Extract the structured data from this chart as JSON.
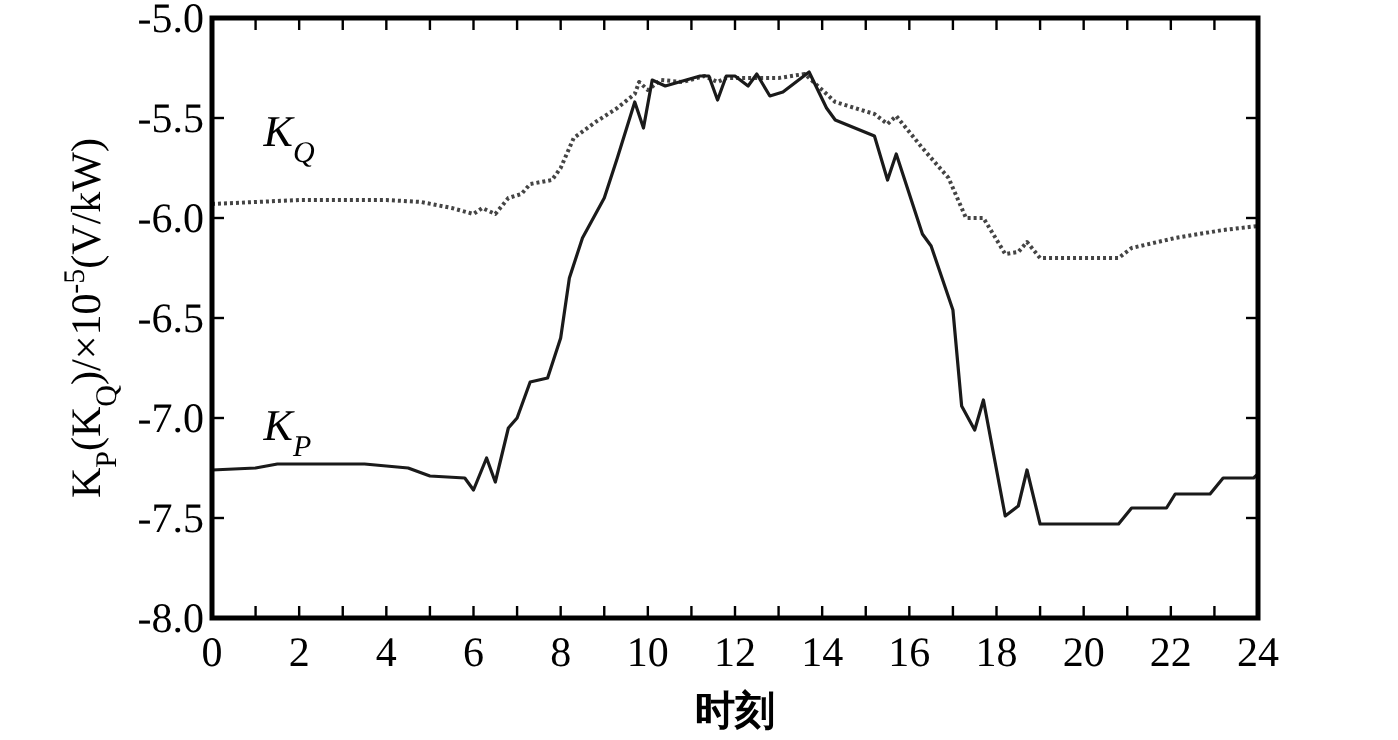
{
  "chart_data": {
    "type": "line",
    "xlabel": "时刻",
    "ylabel": "K$_{P}$(K$_{Q}$)/×10$^{-5}$(V/kW)",
    "xlim": [
      0,
      24
    ],
    "ylim": [
      -8,
      -5
    ],
    "xticks": [
      0,
      {
        "value": 1,
        "label": null
      },
      2,
      {
        "value": 3,
        "label": null
      },
      4,
      {
        "value": 5,
        "label": null
      },
      6,
      {
        "value": 7,
        "label": null
      },
      8,
      {
        "value": 9,
        "label": null
      },
      10,
      {
        "value": 11,
        "label": null
      },
      12,
      {
        "value": 13,
        "label": null
      },
      14,
      {
        "value": 15,
        "label": null
      },
      16,
      {
        "value": 17,
        "label": null
      },
      18,
      {
        "value": 19,
        "label": null
      },
      20,
      {
        "value": 21,
        "label": null
      },
      22,
      {
        "value": 23,
        "label": null
      },
      24
    ],
    "yticks": [
      {
        "value": -8,
        "label": "-8.0"
      },
      {
        "value": -7.5,
        "label": "-7.5"
      },
      {
        "value": -7,
        "label": "-7.0"
      },
      {
        "value": -6.5,
        "label": "-6.5"
      },
      {
        "value": -6,
        "label": "-6.0"
      },
      {
        "value": -5.5,
        "label": "-5.5"
      },
      {
        "value": -5,
        "label": "-5.0"
      }
    ],
    "grid": false,
    "marker": "none",
    "series": [
      {
        "name": "K$_{Q}$",
        "color": "#444444",
        "line_style": "dotted",
        "x": [
          0,
          1,
          2,
          4,
          4.8,
          5.5,
          6.0,
          6.2,
          6.5,
          6.8,
          7.1,
          7.3,
          7.8,
          8.0,
          8.3,
          8.8,
          9.3,
          9.7,
          9.8,
          10.0,
          10.3,
          10.8,
          11.3,
          11.6,
          11.8,
          12.5,
          13.0,
          13.6,
          14.3,
          15.2,
          15.5,
          15.7,
          16.3,
          16.9,
          17.3,
          17.7,
          18.2,
          18.5,
          18.7,
          19.0,
          20.8,
          21.1,
          22.1,
          23.2,
          24
        ],
        "values": [
          -5.93,
          -5.92,
          -5.91,
          -5.91,
          -5.92,
          -5.95,
          -5.98,
          -5.95,
          -5.98,
          -5.9,
          -5.88,
          -5.83,
          -5.81,
          -5.75,
          -5.6,
          -5.52,
          -5.45,
          -5.38,
          -5.32,
          -5.36,
          -5.31,
          -5.32,
          -5.29,
          -5.32,
          -5.3,
          -5.3,
          -5.3,
          -5.28,
          -5.42,
          -5.48,
          -5.53,
          -5.49,
          -5.65,
          -5.8,
          -6.0,
          -6.0,
          -6.18,
          -6.17,
          -6.12,
          -6.2,
          -6.2,
          -6.15,
          -6.1,
          -6.06,
          -6.04
        ]
      },
      {
        "name": "K$_{P}$",
        "color": "#1a1a1a",
        "line_style": "solid",
        "x": [
          0,
          1,
          1.5,
          3.5,
          4.5,
          5,
          5.8,
          6.0,
          6.3,
          6.5,
          6.8,
          7.0,
          7.3,
          7.7,
          8.0,
          8.2,
          8.5,
          9.0,
          9.3,
          9.7,
          9.9,
          10.1,
          10.4,
          11.2,
          11.4,
          11.6,
          11.8,
          12.0,
          12.3,
          12.5,
          12.8,
          13.1,
          13.7,
          14.1,
          14.3,
          15.2,
          15.5,
          15.7,
          16.3,
          16.5,
          17.0,
          17.2,
          17.5,
          17.7,
          18.2,
          18.5,
          18.7,
          19.0,
          20.8,
          21.1,
          21.9,
          22.1,
          22.9,
          23.2,
          23.9,
          24
        ],
        "values": [
          -7.26,
          -7.25,
          -7.23,
          -7.23,
          -7.25,
          -7.29,
          -7.3,
          -7.36,
          -7.2,
          -7.32,
          -7.05,
          -7.0,
          -6.82,
          -6.8,
          -6.6,
          -6.3,
          -6.1,
          -5.9,
          -5.7,
          -5.42,
          -5.55,
          -5.31,
          -5.34,
          -5.29,
          -5.29,
          -5.41,
          -5.29,
          -5.29,
          -5.34,
          -5.28,
          -5.39,
          -5.37,
          -5.27,
          -5.45,
          -5.51,
          -5.59,
          -5.81,
          -5.68,
          -6.08,
          -6.14,
          -6.46,
          -6.94,
          -7.06,
          -6.91,
          -7.49,
          -7.44,
          -7.26,
          -7.53,
          -7.53,
          -7.45,
          -7.45,
          -7.38,
          -7.38,
          -7.3,
          -7.3,
          -7.28
        ]
      }
    ]
  }
}
